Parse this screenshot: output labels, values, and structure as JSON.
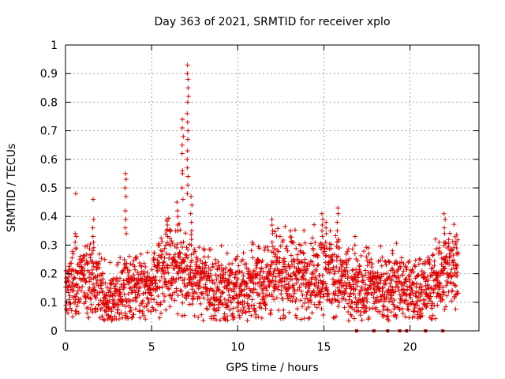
{
  "chart_data": {
    "type": "scatter",
    "title": "Day 363 of 2021, SRMTID for receiver xplo",
    "xlabel": "GPS time / hours",
    "ylabel": "SRMTID / TECUs",
    "xlim": [
      0,
      24
    ],
    "ylim": [
      0,
      1
    ],
    "x_ticks": [
      0,
      5,
      10,
      15,
      20
    ],
    "x_tick_labels": [
      "0",
      "5",
      "10",
      "15",
      "20"
    ],
    "y_ticks": [
      0,
      0.1,
      0.2,
      0.3,
      0.4,
      0.5,
      0.6,
      0.7,
      0.8,
      0.9,
      1
    ],
    "y_tick_labels": [
      "0",
      "0.1",
      "0.2",
      "0.3",
      "0.4",
      "0.5",
      "0.6",
      "0.7",
      "0.8",
      "0.9",
      "1"
    ],
    "grid": true,
    "marker": "+",
    "series_color": "#e00000",
    "zero_markers_x": [
      16.9,
      17.9,
      18.7,
      19.4,
      19.8,
      20.9,
      21.9
    ],
    "profile": [
      [
        0.0,
        0.15
      ],
      [
        0.5,
        0.17
      ],
      [
        1.0,
        0.16
      ],
      [
        1.5,
        0.19
      ],
      [
        2.0,
        0.16
      ],
      [
        2.5,
        0.1
      ],
      [
        3.0,
        0.12
      ],
      [
        3.5,
        0.15
      ],
      [
        4.0,
        0.14
      ],
      [
        4.5,
        0.14
      ],
      [
        5.0,
        0.16
      ],
      [
        5.5,
        0.22
      ],
      [
        6.0,
        0.24
      ],
      [
        6.5,
        0.22
      ],
      [
        7.0,
        0.21
      ],
      [
        7.5,
        0.19
      ],
      [
        8.0,
        0.16
      ],
      [
        8.5,
        0.14
      ],
      [
        9.0,
        0.15
      ],
      [
        9.5,
        0.14
      ],
      [
        10.0,
        0.14
      ],
      [
        10.5,
        0.15
      ],
      [
        11.0,
        0.17
      ],
      [
        11.5,
        0.18
      ],
      [
        12.0,
        0.19
      ],
      [
        12.5,
        0.2
      ],
      [
        13.0,
        0.21
      ],
      [
        13.5,
        0.2
      ],
      [
        14.0,
        0.19
      ],
      [
        14.5,
        0.2
      ],
      [
        15.0,
        0.2
      ],
      [
        15.5,
        0.2
      ],
      [
        16.0,
        0.18
      ],
      [
        16.5,
        0.14
      ],
      [
        17.0,
        0.14
      ],
      [
        17.5,
        0.15
      ],
      [
        18.0,
        0.15
      ],
      [
        18.5,
        0.16
      ],
      [
        19.0,
        0.15
      ],
      [
        19.5,
        0.17
      ],
      [
        20.0,
        0.14
      ],
      [
        20.5,
        0.14
      ],
      [
        21.0,
        0.15
      ],
      [
        21.5,
        0.17
      ],
      [
        22.0,
        0.2
      ],
      [
        22.5,
        0.25
      ],
      [
        22.8,
        0.25
      ]
    ],
    "highlights": [
      {
        "x": 0.6,
        "values": [
          0.48,
          0.34,
          0.33,
          0.31,
          0.29
        ]
      },
      {
        "x": 1.6,
        "values": [
          0.46,
          0.39,
          0.36,
          0.33,
          0.31,
          0.28
        ]
      },
      {
        "x": 3.5,
        "values": [
          0.55,
          0.53,
          0.5,
          0.47,
          0.42,
          0.39,
          0.36,
          0.34
        ]
      },
      {
        "x": 5.9,
        "values": [
          0.39,
          0.37,
          0.35,
          0.33
        ]
      },
      {
        "x": 6.5,
        "values": [
          0.45,
          0.42,
          0.4,
          0.37,
          0.35
        ]
      },
      {
        "x": 6.8,
        "values": [
          0.74,
          0.71,
          0.68,
          0.65,
          0.62,
          0.56,
          0.55,
          0.5,
          0.46
        ]
      },
      {
        "x": 7.1,
        "values": [
          0.93,
          0.9,
          0.88,
          0.85,
          0.82,
          0.8,
          0.76,
          0.73,
          0.7,
          0.67,
          0.63,
          0.6,
          0.57,
          0.54,
          0.51,
          0.48
        ]
      },
      {
        "x": 7.3,
        "values": [
          0.47,
          0.44,
          0.41,
          0.38,
          0.35,
          0.32,
          0.3
        ]
      },
      {
        "x": 12.0,
        "values": [
          0.39,
          0.37,
          0.34,
          0.31
        ]
      },
      {
        "x": 14.9,
        "values": [
          0.41,
          0.39,
          0.37,
          0.35,
          0.33
        ]
      },
      {
        "x": 15.1,
        "values": [
          0.38,
          0.36,
          0.34,
          0.31
        ]
      },
      {
        "x": 15.8,
        "values": [
          0.43,
          0.41,
          0.38,
          0.35,
          0.32,
          0.29
        ]
      },
      {
        "x": 16.8,
        "values": [
          0.33,
          0.3,
          0.27
        ]
      },
      {
        "x": 17.6,
        "values": [
          0.29,
          0.27
        ]
      },
      {
        "x": 19.0,
        "values": [
          0.28,
          0.27
        ]
      },
      {
        "x": 21.7,
        "values": [
          0.31,
          0.29,
          0.27
        ]
      },
      {
        "x": 22.0,
        "values": [
          0.41,
          0.39,
          0.36,
          0.34,
          0.31
        ]
      },
      {
        "x": 22.7,
        "values": [
          0.31,
          0.29,
          0.27
        ]
      }
    ]
  }
}
